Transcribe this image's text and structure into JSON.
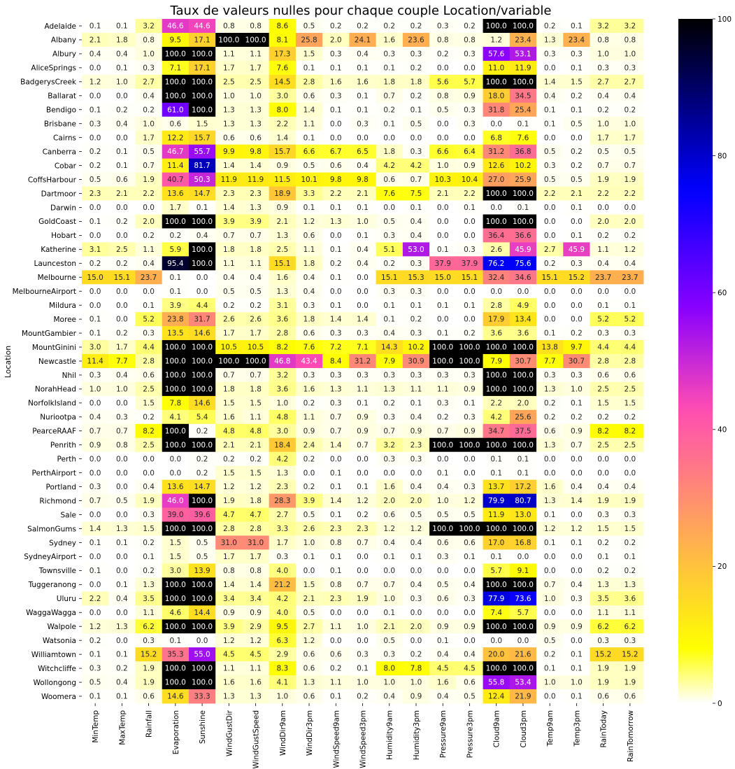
{
  "chart_data": {
    "type": "heatmap",
    "title": "Taux de valeurs nulles pour chaque couple Location/variable",
    "ylabel": "Location",
    "xlabel": "",
    "columns": [
      "MinTemp",
      "MaxTemp",
      "Rainfall",
      "Evaporation",
      "Sunshine",
      "WindGustDir",
      "WindGustSpeed",
      "WindDir9am",
      "WindDir3pm",
      "WindSpeed9am",
      "WindSpeed3pm",
      "Humidity9am",
      "Humidity3pm",
      "Pressure9am",
      "Pressure3pm",
      "Cloud9am",
      "Cloud3pm",
      "Temp9am",
      "Temp3pm",
      "RainToday",
      "RainTomorrow"
    ],
    "rows": [
      "Adelaide",
      "Albany",
      "Albury",
      "AliceSprings",
      "BadgerysCreek",
      "Ballarat",
      "Bendigo",
      "Brisbane",
      "Cairns",
      "Canberra",
      "Cobar",
      "CoffsHarbour",
      "Dartmoor",
      "Darwin",
      "GoldCoast",
      "Hobart",
      "Katherine",
      "Launceston",
      "Melbourne",
      "MelbourneAirport",
      "Mildura",
      "Moree",
      "MountGambier",
      "MountGinini",
      "Newcastle",
      "Nhil",
      "NorahHead",
      "NorfolkIsland",
      "Nuriootpa",
      "PearceRAAF",
      "Penrith",
      "Perth",
      "PerthAirport",
      "Portland",
      "Richmond",
      "Sale",
      "SalmonGums",
      "Sydney",
      "SydneyAirport",
      "Townsville",
      "Tuggeranong",
      "Uluru",
      "WaggaWagga",
      "Walpole",
      "Watsonia",
      "Williamtown",
      "Witchcliffe",
      "Wollongong",
      "Woomera"
    ],
    "values": [
      [
        0.1,
        0.1,
        3.2,
        46.6,
        44.6,
        0.8,
        0.8,
        8.6,
        0.5,
        0.2,
        0.2,
        0.2,
        0.2,
        0.3,
        0.2,
        100.0,
        100.0,
        0.2,
        0.1,
        3.2,
        3.2
      ],
      [
        2.1,
        1.8,
        0.8,
        9.5,
        17.1,
        100.0,
        100.0,
        8.1,
        25.8,
        2.0,
        24.1,
        1.6,
        23.6,
        0.8,
        0.8,
        1.2,
        23.4,
        1.3,
        23.4,
        0.8,
        0.8
      ],
      [
        0.4,
        0.4,
        1.0,
        100.0,
        100.0,
        1.1,
        1.1,
        17.3,
        1.5,
        0.3,
        0.4,
        0.3,
        0.3,
        0.2,
        0.3,
        57.6,
        53.1,
        0.3,
        0.3,
        1.0,
        1.0
      ],
      [
        0.0,
        0.1,
        0.3,
        7.1,
        17.1,
        1.7,
        1.7,
        7.6,
        0.1,
        0.1,
        0.1,
        0.1,
        0.2,
        0.0,
        0.0,
        11.0,
        11.9,
        0.0,
        0.1,
        0.3,
        0.3
      ],
      [
        1.2,
        1.0,
        2.7,
        100.0,
        100.0,
        2.5,
        2.5,
        14.5,
        2.8,
        1.6,
        1.6,
        1.8,
        1.8,
        5.6,
        5.7,
        100.0,
        100.0,
        1.4,
        1.5,
        2.7,
        2.7
      ],
      [
        0.0,
        0.0,
        0.4,
        100.0,
        100.0,
        1.0,
        1.0,
        3.0,
        0.6,
        0.3,
        0.1,
        0.7,
        0.2,
        0.8,
        0.9,
        18.0,
        34.5,
        0.4,
        0.2,
        0.4,
        0.4
      ],
      [
        0.1,
        0.2,
        0.2,
        61.0,
        100.0,
        1.3,
        1.3,
        8.0,
        1.4,
        0.1,
        0.1,
        0.2,
        0.1,
        0.5,
        0.3,
        31.8,
        25.4,
        0.1,
        0.1,
        0.2,
        0.2
      ],
      [
        0.3,
        0.4,
        1.0,
        0.6,
        1.5,
        1.3,
        1.3,
        2.2,
        1.1,
        0.0,
        0.3,
        0.1,
        0.5,
        0.0,
        0.3,
        0.0,
        0.1,
        0.1,
        0.5,
        1.0,
        1.0
      ],
      [
        0.0,
        0.0,
        1.7,
        12.2,
        15.7,
        0.6,
        0.6,
        1.4,
        0.1,
        0.0,
        0.0,
        0.0,
        0.0,
        0.0,
        0.0,
        6.8,
        7.6,
        0.0,
        0.0,
        1.7,
        1.7
      ],
      [
        0.2,
        0.1,
        0.5,
        46.7,
        55.7,
        9.9,
        9.8,
        15.7,
        6.6,
        6.7,
        6.5,
        1.8,
        0.3,
        6.6,
        6.4,
        31.2,
        36.8,
        0.5,
        0.2,
        0.5,
        0.5
      ],
      [
        0.2,
        0.1,
        0.7,
        11.4,
        81.7,
        1.4,
        1.4,
        0.9,
        0.5,
        0.6,
        0.4,
        4.2,
        4.2,
        1.0,
        0.9,
        12.6,
        10.2,
        0.3,
        0.2,
        0.7,
        0.7
      ],
      [
        0.5,
        0.6,
        1.9,
        40.7,
        50.3,
        11.9,
        11.9,
        11.5,
        10.1,
        9.8,
        9.8,
        0.6,
        0.7,
        10.3,
        10.4,
        27.0,
        25.9,
        0.5,
        0.5,
        1.9,
        1.9
      ],
      [
        2.3,
        2.1,
        2.2,
        13.6,
        14.7,
        2.3,
        2.3,
        18.9,
        3.3,
        2.2,
        2.1,
        7.6,
        7.5,
        2.1,
        2.2,
        100.0,
        100.0,
        2.2,
        2.1,
        2.2,
        2.2
      ],
      [
        0.0,
        0.0,
        0.0,
        1.7,
        0.1,
        1.4,
        1.3,
        0.9,
        0.1,
        0.1,
        0.1,
        0.0,
        0.1,
        0.0,
        0.1,
        0.0,
        0.1,
        0.0,
        0.1,
        0.0,
        0.0
      ],
      [
        0.1,
        0.2,
        2.0,
        100.0,
        100.0,
        3.9,
        3.9,
        2.1,
        1.2,
        1.3,
        1.0,
        0.5,
        0.4,
        0.0,
        0.0,
        100.0,
        100.0,
        0.0,
        0.0,
        2.0,
        2.0
      ],
      [
        0.0,
        0.0,
        0.2,
        0.2,
        0.4,
        0.7,
        0.7,
        1.3,
        0.6,
        0.0,
        0.1,
        0.3,
        0.4,
        0.0,
        0.0,
        36.4,
        36.6,
        0.0,
        0.1,
        0.2,
        0.2
      ],
      [
        3.1,
        2.5,
        1.1,
        5.9,
        100.0,
        1.8,
        1.8,
        2.5,
        1.1,
        0.1,
        0.4,
        5.1,
        53.0,
        0.1,
        0.3,
        2.6,
        45.9,
        2.7,
        45.9,
        1.1,
        1.2
      ],
      [
        0.2,
        0.2,
        0.4,
        95.4,
        100.0,
        1.1,
        1.1,
        15.1,
        1.8,
        0.2,
        0.4,
        0.2,
        0.3,
        37.9,
        37.9,
        76.2,
        75.6,
        0.2,
        0.3,
        0.4,
        0.4
      ],
      [
        15.0,
        15.1,
        23.7,
        0.1,
        0.0,
        0.4,
        0.4,
        1.6,
        0.4,
        0.1,
        0.0,
        15.1,
        15.3,
        15.0,
        15.1,
        32.4,
        34.6,
        15.1,
        15.2,
        23.7,
        23.7
      ],
      [
        0.0,
        0.0,
        0.0,
        0.1,
        0.0,
        0.5,
        0.5,
        1.3,
        0.4,
        0.0,
        0.0,
        0.3,
        0.3,
        0.0,
        0.0,
        0.0,
        0.0,
        0.0,
        0.0,
        0.0,
        0.0
      ],
      [
        0.0,
        0.0,
        0.1,
        3.9,
        4.4,
        0.2,
        0.2,
        3.1,
        0.3,
        0.1,
        0.0,
        0.1,
        0.1,
        0.1,
        0.1,
        2.8,
        4.9,
        0.0,
        0.0,
        0.1,
        0.1
      ],
      [
        0.1,
        0.0,
        5.2,
        23.8,
        31.7,
        2.6,
        2.6,
        3.6,
        1.8,
        1.4,
        1.4,
        0.1,
        0.2,
        0.0,
        0.0,
        17.9,
        13.4,
        0.0,
        0.0,
        5.2,
        5.2
      ],
      [
        0.1,
        0.2,
        0.3,
        13.5,
        14.6,
        1.7,
        1.7,
        2.8,
        0.6,
        0.3,
        0.3,
        0.4,
        0.3,
        0.1,
        0.2,
        3.6,
        3.6,
        0.1,
        0.2,
        0.3,
        0.3
      ],
      [
        3.0,
        1.7,
        4.4,
        100.0,
        100.0,
        10.5,
        10.5,
        8.2,
        7.6,
        7.2,
        7.1,
        14.3,
        10.2,
        100.0,
        100.0,
        100.0,
        100.0,
        13.8,
        9.7,
        4.4,
        4.4
      ],
      [
        11.4,
        7.7,
        2.8,
        100.0,
        100.0,
        100.0,
        100.0,
        46.8,
        43.4,
        8.4,
        31.2,
        7.9,
        30.9,
        100.0,
        100.0,
        7.9,
        30.7,
        7.7,
        30.7,
        2.8,
        2.8
      ],
      [
        0.3,
        0.4,
        0.6,
        100.0,
        100.0,
        0.7,
        0.7,
        3.2,
        0.3,
        0.3,
        0.3,
        0.3,
        0.3,
        0.3,
        0.3,
        100.0,
        100.0,
        0.3,
        0.3,
        0.6,
        0.6
      ],
      [
        1.0,
        1.0,
        2.5,
        100.0,
        100.0,
        1.8,
        1.8,
        3.6,
        1.6,
        1.3,
        1.1,
        1.3,
        1.1,
        1.1,
        0.9,
        100.0,
        100.0,
        1.3,
        1.0,
        2.5,
        2.5
      ],
      [
        0.0,
        0.0,
        1.5,
        7.8,
        14.6,
        1.5,
        1.5,
        1.0,
        0.2,
        0.3,
        0.1,
        0.2,
        0.1,
        0.3,
        0.1,
        2.2,
        2.0,
        0.2,
        0.1,
        1.5,
        1.5
      ],
      [
        0.4,
        0.3,
        0.2,
        4.1,
        5.4,
        1.6,
        1.1,
        4.8,
        1.1,
        0.7,
        0.9,
        0.3,
        0.4,
        0.2,
        0.3,
        4.2,
        25.6,
        0.2,
        0.2,
        0.2,
        0.2
      ],
      [
        0.7,
        0.7,
        8.2,
        100.0,
        0.2,
        4.8,
        4.8,
        3.0,
        0.9,
        0.7,
        0.9,
        0.7,
        0.9,
        0.7,
        0.9,
        34.7,
        37.5,
        0.6,
        0.9,
        8.2,
        8.2
      ],
      [
        0.9,
        0.8,
        2.5,
        100.0,
        100.0,
        2.1,
        2.1,
        18.4,
        2.4,
        1.4,
        0.7,
        3.2,
        2.3,
        100.0,
        100.0,
        100.0,
        100.0,
        1.3,
        0.7,
        2.5,
        2.5
      ],
      [
        0.0,
        0.0,
        0.0,
        0.0,
        0.2,
        0.2,
        0.2,
        4.2,
        0.2,
        0.0,
        0.0,
        0.3,
        0.3,
        0.0,
        0.0,
        0.1,
        0.1,
        0.0,
        0.0,
        0.0,
        0.0
      ],
      [
        0.0,
        0.0,
        0.0,
        0.0,
        0.2,
        1.5,
        1.5,
        1.3,
        0.0,
        0.1,
        0.0,
        0.0,
        0.0,
        0.1,
        0.0,
        0.1,
        0.1,
        0.0,
        0.0,
        0.0,
        0.0
      ],
      [
        0.3,
        0.0,
        0.4,
        13.6,
        14.7,
        1.2,
        1.2,
        2.3,
        0.2,
        0.1,
        0.1,
        1.6,
        0.4,
        0.4,
        0.3,
        13.7,
        17.2,
        1.6,
        0.4,
        0.4,
        0.4
      ],
      [
        0.7,
        0.5,
        1.9,
        46.0,
        100.0,
        1.9,
        1.8,
        28.3,
        3.9,
        1.4,
        1.2,
        2.0,
        2.0,
        1.0,
        1.2,
        79.9,
        80.7,
        1.3,
        1.4,
        1.9,
        1.9
      ],
      [
        0.0,
        0.0,
        0.3,
        39.0,
        39.6,
        4.7,
        4.7,
        2.7,
        0.5,
        0.1,
        0.2,
        0.6,
        0.5,
        0.5,
        0.5,
        11.9,
        13.0,
        0.1,
        0.0,
        0.3,
        0.3
      ],
      [
        1.4,
        1.3,
        1.5,
        100.0,
        100.0,
        2.8,
        2.8,
        3.3,
        2.6,
        2.3,
        2.3,
        1.2,
        1.2,
        100.0,
        100.0,
        100.0,
        100.0,
        1.2,
        1.2,
        1.5,
        1.5
      ],
      [
        0.1,
        0.1,
        0.2,
        1.5,
        0.5,
        31.0,
        31.0,
        1.7,
        1.0,
        0.8,
        0.7,
        0.4,
        0.4,
        0.6,
        0.6,
        17.0,
        16.8,
        0.1,
        0.1,
        0.2,
        0.2
      ],
      [
        0.0,
        0.0,
        0.1,
        1.5,
        0.5,
        1.7,
        1.7,
        0.3,
        0.1,
        0.1,
        0.0,
        0.1,
        0.1,
        0.3,
        0.1,
        0.1,
        0.0,
        0.0,
        0.0,
        0.1,
        0.1
      ],
      [
        0.1,
        0.0,
        0.2,
        3.0,
        13.9,
        0.8,
        0.8,
        4.0,
        0.0,
        0.1,
        0.0,
        0.0,
        0.0,
        0.0,
        0.0,
        5.7,
        9.1,
        0.0,
        0.0,
        0.2,
        0.2
      ],
      [
        0.0,
        0.1,
        1.3,
        100.0,
        100.0,
        1.4,
        1.4,
        21.2,
        1.5,
        0.8,
        0.7,
        0.7,
        0.4,
        0.5,
        0.4,
        100.0,
        100.0,
        0.7,
        0.4,
        1.3,
        1.3
      ],
      [
        2.2,
        0.4,
        3.5,
        100.0,
        100.0,
        3.4,
        3.4,
        4.2,
        2.1,
        2.3,
        1.9,
        1.0,
        0.3,
        0.6,
        0.3,
        77.9,
        73.6,
        1.0,
        0.3,
        3.5,
        3.6
      ],
      [
        0.0,
        0.0,
        1.1,
        4.6,
        14.4,
        0.9,
        0.9,
        4.0,
        0.5,
        0.0,
        0.0,
        0.1,
        0.0,
        0.0,
        0.0,
        7.4,
        5.7,
        0.0,
        0.0,
        1.1,
        1.1
      ],
      [
        1.2,
        1.3,
        6.2,
        100.0,
        100.0,
        3.9,
        2.9,
        9.5,
        2.7,
        1.1,
        1.0,
        2.1,
        2.0,
        0.9,
        0.9,
        100.0,
        100.0,
        0.9,
        0.9,
        6.2,
        6.2
      ],
      [
        0.2,
        0.0,
        0.3,
        0.1,
        0.0,
        1.2,
        1.2,
        6.3,
        1.2,
        0.0,
        0.0,
        0.5,
        0.0,
        0.1,
        0.0,
        0.0,
        0.0,
        0.5,
        0.0,
        0.3,
        0.3
      ],
      [
        0.1,
        0.1,
        15.2,
        35.3,
        55.0,
        4.5,
        4.5,
        2.9,
        0.6,
        0.6,
        0.3,
        0.3,
        0.2,
        0.4,
        0.4,
        20.0,
        21.6,
        0.2,
        0.1,
        15.2,
        15.2
      ],
      [
        0.3,
        0.2,
        1.9,
        100.0,
        100.0,
        1.1,
        1.1,
        8.3,
        0.6,
        0.2,
        0.1,
        8.0,
        7.8,
        4.5,
        4.5,
        100.0,
        100.0,
        0.1,
        0.1,
        1.9,
        1.9
      ],
      [
        0.5,
        0.4,
        1.9,
        100.0,
        100.0,
        1.6,
        1.6,
        4.1,
        1.3,
        1.1,
        1.0,
        1.0,
        1.0,
        1.6,
        0.6,
        55.8,
        53.4,
        1.0,
        1.0,
        1.9,
        1.9
      ],
      [
        0.1,
        0.1,
        0.6,
        14.6,
        33.3,
        1.3,
        1.3,
        1.0,
        0.6,
        0.1,
        0.2,
        0.4,
        0.9,
        0.4,
        0.5,
        12.4,
        21.9,
        0.0,
        0.1,
        0.6,
        0.6
      ]
    ],
    "value_format": "one-decimal",
    "vmin": 0,
    "vmax": 100,
    "colormap": "gnuplot2_r",
    "colorbar_ticks": [
      0,
      20,
      40,
      60,
      80,
      100
    ],
    "annotated": true,
    "grid": false,
    "legend": "colorbar-right"
  }
}
